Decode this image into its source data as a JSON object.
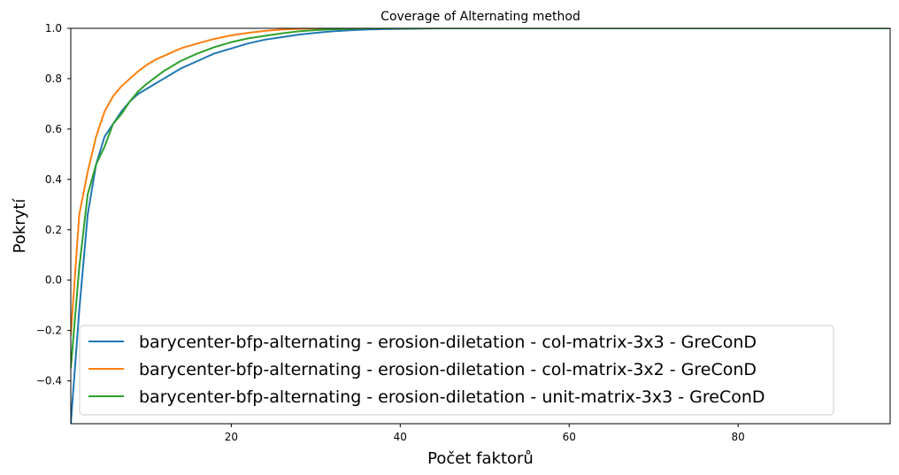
{
  "chart_data": {
    "type": "line",
    "title": "Coverage of Alternating method",
    "xlabel": "Počet faktorů",
    "ylabel": "Pokrytí",
    "xlim": [
      1,
      98
    ],
    "ylim": [
      -0.57,
      1.0
    ],
    "xticks": [
      20,
      40,
      60,
      80
    ],
    "xtick_labels": [
      "20",
      "40",
      "60",
      "80"
    ],
    "yticks": [
      -0.4,
      -0.2,
      0.0,
      0.2,
      0.4,
      0.6,
      0.8,
      1.0
    ],
    "ytick_labels": [
      "−0.4",
      "−0.2",
      "0.0",
      "0.2",
      "0.4",
      "0.6",
      "0.8",
      "1.0"
    ],
    "grid": false,
    "legend_position": "lower-left",
    "series": [
      {
        "name": "barycenter-bfp-alternating - erosion-diletation - col-matrix-3x3 - GreConD",
        "color": "#1f77b4",
        "x": [
          1,
          2,
          3,
          4,
          5,
          6,
          7,
          8,
          9,
          10,
          11,
          12,
          13,
          14,
          16,
          18,
          20,
          22,
          24,
          26,
          28,
          30,
          32,
          34,
          36,
          38,
          40,
          45,
          50,
          60,
          70,
          80,
          90,
          98
        ],
        "y": [
          -0.57,
          -0.12,
          0.26,
          0.46,
          0.57,
          0.62,
          0.67,
          0.71,
          0.74,
          0.76,
          0.78,
          0.8,
          0.82,
          0.84,
          0.87,
          0.9,
          0.92,
          0.94,
          0.955,
          0.965,
          0.975,
          0.982,
          0.988,
          0.992,
          0.995,
          0.997,
          0.998,
          1.0,
          1.0,
          1.0,
          1.0,
          1.0,
          1.0,
          1.0
        ]
      },
      {
        "name": "barycenter-bfp-alternating - erosion-diletation - col-matrix-3x2 - GreConD",
        "color": "#ff7f0e",
        "x": [
          1,
          2,
          3,
          4,
          5,
          6,
          7,
          8,
          9,
          10,
          11,
          12,
          13,
          14,
          16,
          18,
          20,
          22,
          24,
          26,
          28,
          30,
          32,
          34,
          36,
          38,
          40,
          45,
          50,
          60,
          70,
          80,
          90,
          98
        ],
        "y": [
          -0.22,
          0.26,
          0.43,
          0.57,
          0.67,
          0.73,
          0.77,
          0.8,
          0.83,
          0.855,
          0.875,
          0.89,
          0.905,
          0.92,
          0.94,
          0.958,
          0.972,
          0.982,
          0.99,
          0.995,
          0.998,
          1.0,
          1.0,
          1.0,
          1.0,
          1.0,
          1.0,
          1.0,
          1.0,
          1.0,
          1.0,
          1.0,
          1.0,
          1.0
        ]
      },
      {
        "name": "barycenter-bfp-alternating - erosion-diletation - unit-matrix-3x3 - GreConD",
        "color": "#2ca02c",
        "x": [
          1,
          2,
          3,
          4,
          5,
          6,
          7,
          8,
          9,
          10,
          11,
          12,
          13,
          14,
          16,
          18,
          20,
          22,
          24,
          26,
          28,
          30,
          32,
          34,
          36,
          38,
          40,
          45,
          50,
          60,
          70,
          80,
          90,
          98
        ],
        "y": [
          -0.35,
          0.05,
          0.34,
          0.46,
          0.53,
          0.62,
          0.66,
          0.71,
          0.75,
          0.78,
          0.805,
          0.83,
          0.85,
          0.87,
          0.9,
          0.925,
          0.945,
          0.96,
          0.97,
          0.98,
          0.988,
          0.993,
          0.996,
          0.998,
          1.0,
          1.0,
          1.0,
          1.0,
          1.0,
          1.0,
          1.0,
          1.0,
          1.0,
          1.0
        ]
      }
    ]
  }
}
